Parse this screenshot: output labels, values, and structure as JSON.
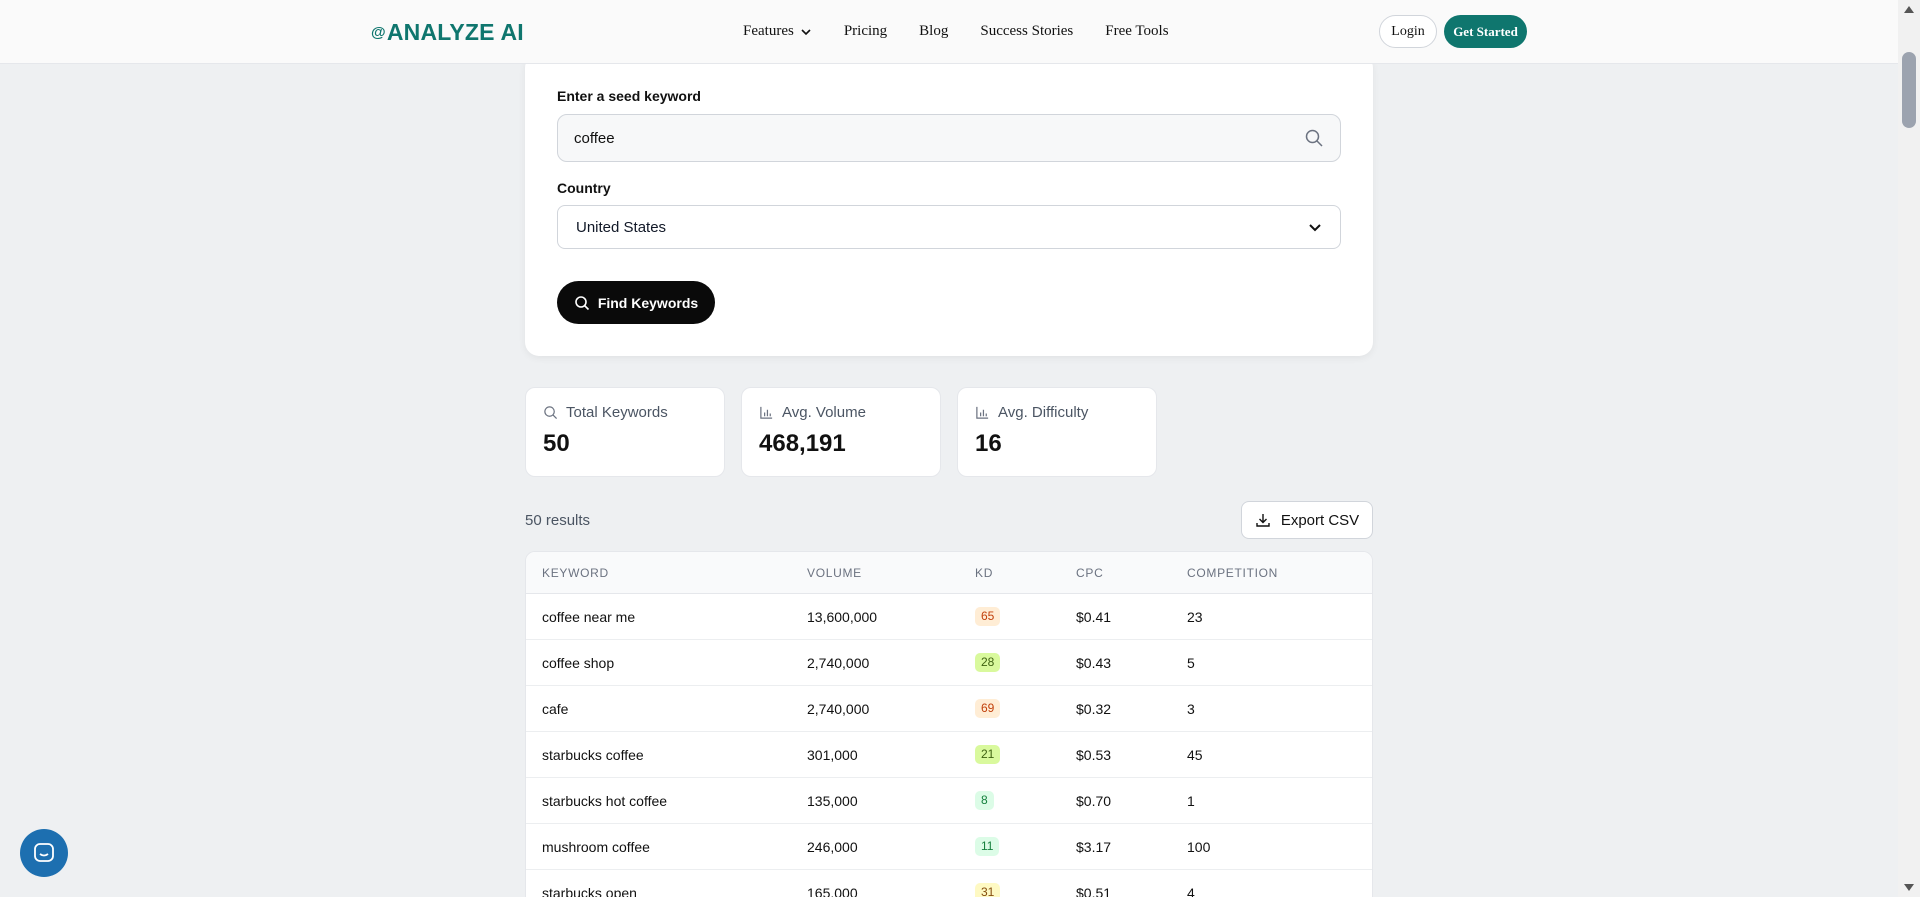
{
  "header": {
    "logo": "ANALYZE AI",
    "nav": [
      {
        "label": "Features",
        "has_dropdown": true
      },
      {
        "label": "Pricing"
      },
      {
        "label": "Blog"
      },
      {
        "label": "Success Stories"
      },
      {
        "label": "Free Tools"
      }
    ],
    "login_label": "Login",
    "get_started_label": "Get Started"
  },
  "search": {
    "seed_label": "Enter a seed keyword",
    "seed_value": "coffee",
    "country_label": "Country",
    "country_value": "United States",
    "find_button": "Find Keywords"
  },
  "stats": [
    {
      "label": "Total Keywords",
      "value": "50",
      "icon": "search-icon"
    },
    {
      "label": "Avg. Volume",
      "value": "468,191",
      "icon": "bar-chart-icon"
    },
    {
      "label": "Avg. Difficulty",
      "value": "16",
      "icon": "bar-chart-icon"
    }
  ],
  "results": {
    "count_text": "50 results",
    "export_label": "Export CSV"
  },
  "table": {
    "columns": [
      "KEYWORD",
      "VOLUME",
      "KD",
      "CPC",
      "COMPETITION"
    ],
    "rows": [
      {
        "keyword": "coffee near me",
        "volume": "13,600,000",
        "kd": "65",
        "cpc": "$0.41",
        "competition": "23"
      },
      {
        "keyword": "coffee shop",
        "volume": "2,740,000",
        "kd": "28",
        "cpc": "$0.43",
        "competition": "5"
      },
      {
        "keyword": "cafe",
        "volume": "2,740,000",
        "kd": "69",
        "cpc": "$0.32",
        "competition": "3"
      },
      {
        "keyword": "starbucks coffee",
        "volume": "301,000",
        "kd": "21",
        "cpc": "$0.53",
        "competition": "45"
      },
      {
        "keyword": "starbucks hot coffee",
        "volume": "135,000",
        "kd": "8",
        "cpc": "$0.70",
        "competition": "1"
      },
      {
        "keyword": "mushroom coffee",
        "volume": "246,000",
        "kd": "11",
        "cpc": "$3.17",
        "competition": "100"
      },
      {
        "keyword": "starbucks open",
        "volume": "165,000",
        "kd": "31",
        "cpc": "$0.51",
        "competition": "4"
      }
    ]
  },
  "colors": {
    "brand": "#0f766e",
    "kd_hard": "#c2410c",
    "kd_easy": "#3f6212",
    "kd_very_easy": "#15803d",
    "kd_medium": "#854d0e"
  }
}
